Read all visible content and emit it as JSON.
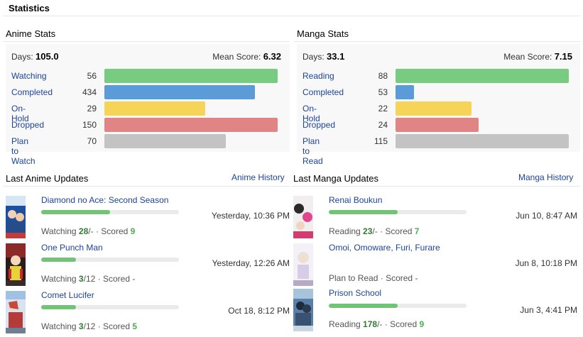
{
  "page": {
    "title": "Statistics"
  },
  "anime": {
    "heading": "Anime Stats",
    "days_label": "Days:",
    "days_value": "105.0",
    "score_label": "Mean Score:",
    "score_value": "6.32",
    "statuses": [
      {
        "label": "Watching",
        "count": "56",
        "color": "#78cc82"
      },
      {
        "label": "Completed",
        "count": "434",
        "color": "#5b9bd8"
      },
      {
        "label": "On-Hold",
        "count": "29",
        "color": "#f6d458"
      },
      {
        "label": "Dropped",
        "count": "150",
        "color": "#e08584"
      },
      {
        "label": "Plan to Watch",
        "count": "70",
        "color": "#c3c3c3"
      }
    ]
  },
  "manga": {
    "heading": "Manga Stats",
    "days_label": "Days:",
    "days_value": "33.1",
    "score_label": "Mean Score:",
    "score_value": "7.15",
    "statuses": [
      {
        "label": "Reading",
        "count": "88",
        "color": "#78cc82"
      },
      {
        "label": "Completed",
        "count": "53",
        "color": "#5b9bd8"
      },
      {
        "label": "On-Hold",
        "count": "22",
        "color": "#f6d458"
      },
      {
        "label": "Dropped",
        "count": "24",
        "color": "#e08584"
      },
      {
        "label": "Plan to Read",
        "count": "115",
        "color": "#c3c3c3"
      }
    ]
  },
  "anime_updates": {
    "heading": "Last Anime Updates",
    "history_link": "Anime History",
    "items": [
      {
        "title": "Diamond no Ace: Second Season",
        "date": "Yesterday, 10:36 PM",
        "status": "Watching",
        "progress": "28",
        "total": "/-",
        "score_label": "· Scored",
        "score": "9",
        "progress_fraction": 0.5
      },
      {
        "title": "One Punch Man",
        "date": "Yesterday, 12:26 AM",
        "status": "Watching",
        "progress": "3",
        "total": "/12",
        "score_label": "· Scored",
        "score": "-",
        "progress_fraction": 0.25
      },
      {
        "title": "Comet Lucifer",
        "date": "Oct 18, 8:12 PM",
        "status": "Watching",
        "progress": "3",
        "total": "/12",
        "score_label": "· Scored",
        "score": "5",
        "progress_fraction": 0.25
      }
    ]
  },
  "manga_updates": {
    "heading": "Last Manga Updates",
    "history_link": "Manga History",
    "items": [
      {
        "title": "Renai Boukun",
        "date": "Jun 10, 8:47 AM",
        "status": "Reading",
        "progress": "23",
        "total": "/-",
        "score_label": "· Scored",
        "score": "7",
        "progress_fraction": 0.5
      },
      {
        "title": "Omoi, Omoware, Furi, Furare",
        "date": "Jun 8, 10:18 PM",
        "status": "Plan to Read",
        "progress": "",
        "total": "",
        "score_label": "· Scored",
        "score": "-",
        "progress_fraction": 0
      },
      {
        "title": "Prison School",
        "date": "Jun 3, 4:41 PM",
        "status": "Reading",
        "progress": "178",
        "total": "/-",
        "score_label": "· Scored",
        "score": "9",
        "progress_fraction": 0.5
      }
    ]
  }
}
